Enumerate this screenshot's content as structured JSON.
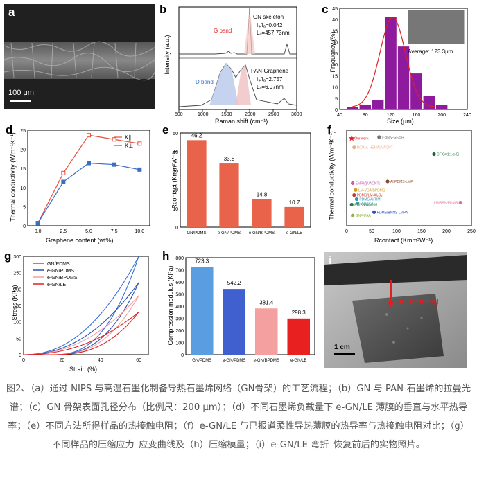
{
  "panels": {
    "a": {
      "label": "a",
      "scale_text": "100 μm"
    },
    "b": {
      "label": "b",
      "ylabel": "Intensity (a.u.)",
      "xlabel": "Raman shift (cm⁻¹)",
      "ticks": [
        "500",
        "1000",
        "1500",
        "2000",
        "2500",
        "3000"
      ],
      "top": {
        "name": "GN skeleton",
        "band": "G band",
        "ratio": "I₉/Iₐ=0.042",
        "la": "Lₐ=457.73nm"
      },
      "bottom": {
        "name": "PAN-Graphene",
        "band": "D band",
        "ratio": "I₉/Iₐ=2.757",
        "la": "Lₐ=6.97nm"
      }
    },
    "c": {
      "label": "c",
      "ylabel": "Frequency (%)",
      "xlabel": "Size (μm)",
      "average": "Average: 123.3μm",
      "xticks": [
        "40",
        "80",
        "120",
        "160",
        "200",
        "240"
      ],
      "yticks": [
        "0",
        "5",
        "10",
        "15",
        "20",
        "25",
        "30",
        "35",
        "40",
        "45"
      ]
    },
    "d": {
      "label": "d",
      "ylabel": "Thermal conductivity (Wm⁻¹K⁻¹)",
      "xlabel": "Graphene content (wt%)",
      "legend": [
        "K∥",
        "K⊥"
      ],
      "xticks": [
        "0.0",
        "2.5",
        "5.0",
        "7.5",
        "10.0"
      ],
      "yticks": [
        "0",
        "5",
        "10",
        "15",
        "20",
        "25"
      ]
    },
    "e": {
      "label": "e",
      "ylabel": "Rcontact (Kmm²W⁻¹)",
      "yticks": [
        "0",
        "10",
        "20",
        "30",
        "40",
        "50"
      ]
    },
    "f": {
      "label": "f",
      "ylabel": "Thermal conductivity (Wm⁻¹K⁻¹)",
      "xlabel": "Rcontact (Kmm²W⁻¹)",
      "xticks": [
        "0",
        "50",
        "100",
        "150",
        "200",
        "250"
      ],
      "our_work": "Our work"
    },
    "g": {
      "label": "g",
      "ylabel": "Stress (KPa)",
      "xlabel": "Strain (%)",
      "xticks": [
        "0",
        "20",
        "40",
        "60"
      ],
      "yticks": [
        "0",
        "50",
        "100",
        "150",
        "200",
        "250",
        "300"
      ]
    },
    "h": {
      "label": "h",
      "ylabel": "Compression modulus (KPa)",
      "yticks": [
        "0",
        "100",
        "200",
        "300",
        "400",
        "500",
        "600",
        "700",
        "800"
      ]
    },
    "i": {
      "label": "i",
      "annotation": "unbending",
      "scale_text": "1 cm"
    }
  },
  "chart_data": [
    {
      "panel": "c",
      "type": "bar",
      "x": [
        60,
        80,
        100,
        120,
        140,
        160,
        180,
        200
      ],
      "values": [
        1,
        2,
        4,
        41,
        28,
        16,
        6,
        2
      ],
      "xlabel": "Size (μm)",
      "ylabel": "Frequency (%)",
      "ylim": [
        0,
        45
      ],
      "xlim": [
        40,
        240
      ]
    },
    {
      "panel": "d",
      "type": "line",
      "x": [
        0,
        2.5,
        5,
        7.5,
        10
      ],
      "series": [
        {
          "name": "K∥",
          "values": [
            0.7,
            13.8,
            23.7,
            22.6,
            21.5
          ],
          "color": "#e74c3c"
        },
        {
          "name": "K⊥",
          "values": [
            0.7,
            11.5,
            16.4,
            16.0,
            14.7
          ],
          "color": "#3a6fc4"
        }
      ],
      "xlabel": "Graphene content (wt%)",
      "ylim": [
        0,
        25
      ]
    },
    {
      "panel": "e",
      "type": "bar",
      "categories": [
        "GN/PDMS",
        "e-GN/PDMS",
        "e-GN/BPDMS",
        "e-GN/LE"
      ],
      "values": [
        46.2,
        33.8,
        14.8,
        10.7
      ],
      "ylim": [
        0,
        50
      ],
      "color": "#e8634a"
    },
    {
      "panel": "f",
      "type": "scatter",
      "points": [
        {
          "name": "Our work",
          "x": 10,
          "y": 23.7,
          "color": "#e62020"
        },
        {
          "name": "v-BN/v-GF/SR",
          "x": 65,
          "y": 24,
          "color": "#777777"
        },
        {
          "name": "P(DMA-HEMA)/VACNT",
          "x": 15,
          "y": 21,
          "color": "#e8b090"
        },
        {
          "name": "CF:G=1:1-c-Si",
          "x": 175,
          "y": 19,
          "color": "#1e6b3a"
        },
        {
          "name": "Al-PDMS-LMP",
          "x": 82,
          "y": 11,
          "color": "#8b4a30"
        },
        {
          "name": "EMPI@VACNTs",
          "x": 12,
          "y": 10.5,
          "color": "#c060b0"
        },
        {
          "name": "LM-VGA/BPDMS",
          "x": 18,
          "y": 8.5,
          "color": "#d0a020"
        },
        {
          "name": "PDMS/LM-Al₂O₃",
          "x": 15,
          "y": 7,
          "color": "#c04020"
        },
        {
          "name": "PDMS/Al TIM",
          "x": 20,
          "y": 5.8,
          "color": "#3090c0"
        },
        {
          "name": "PBS0-20",
          "x": 22,
          "y": 4.6,
          "color": "#40a0a0"
        },
        {
          "name": "PU/BN/AlN/LM",
          "x": 10,
          "y": 4.2,
          "color": "#2a7a40"
        },
        {
          "name": "PDMS/BNNS-LMPA",
          "x": 55,
          "y": 2,
          "color": "#3050c0"
        },
        {
          "name": "LM/SSN/PDMS",
          "x": 228,
          "y": 4.8,
          "color": "#e070a0"
        },
        {
          "name": "GNP-PAA",
          "x": 12,
          "y": 1,
          "color": "#90b040"
        }
      ],
      "xlim": [
        0,
        250
      ]
    },
    {
      "panel": "g",
      "type": "line",
      "xlabel": "Strain (%)",
      "ylabel": "Stress (KPa)",
      "series": [
        {
          "name": "GN/PDMS",
          "color": "#3a6fd0",
          "max": 300
        },
        {
          "name": "e-GN/PDMS",
          "color": "#2a50b0",
          "max": 220
        },
        {
          "name": "e-GN/BPDMS",
          "color": "#f0a0a0",
          "max": 180
        },
        {
          "name": "e-GN/LE",
          "color": "#e02020",
          "max": 130
        }
      ],
      "xlim": [
        0,
        65
      ],
      "ylim": [
        0,
        300
      ]
    },
    {
      "panel": "h",
      "type": "bar",
      "categories": [
        "GN/PDMS",
        "e-GN/PDMS",
        "e-GN/BPDMS",
        "e-GN/LE"
      ],
      "values": [
        723.3,
        542.2,
        381.4,
        298.3
      ],
      "colors": [
        "#5a9de0",
        "#4060d0",
        "#f4a0a0",
        "#e82020"
      ],
      "ylim": [
        0,
        800
      ]
    }
  ],
  "caption": "图2、（a）通过 NIPS 与高温石墨化制备导热石墨烯网络（GN骨架）的工艺流程；（b）GN 与 PAN-石墨烯的拉曼光谱；（c）GN 骨架表面孔径分布（比例尺：200 μm）；（d）不同石墨烯负载量下 e-GN/LE 薄膜的垂直与水平热导率；（e）不同方法所得样品的热接触电阻；（f）e-GN/LE 与已报道柔性导热薄膜的热导率与热接触电阻对比；（g）不同样品的压缩应力–应变曲线及（h）压缩模量；（i）e-GN/LE 弯折–恢复前后的实物照片。"
}
